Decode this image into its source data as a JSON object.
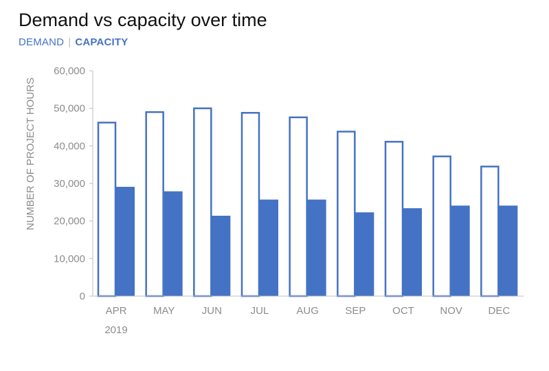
{
  "chart_data": {
    "type": "bar",
    "title": "Demand vs capacity over time",
    "ylabel": "NUMBER OF PROJECT HOURS",
    "xlabel": "",
    "year_label": "2019",
    "categories": [
      "APR",
      "MAY",
      "JUN",
      "JUL",
      "AUG",
      "SEP",
      "OCT",
      "NOV",
      "DEC"
    ],
    "series": [
      {
        "name": "DEMAND",
        "style": "outline",
        "color": "#4472c4",
        "values": [
          46200,
          49000,
          50000,
          48800,
          47600,
          43800,
          41100,
          37200,
          34500
        ]
      },
      {
        "name": "CAPACITY",
        "style": "filled",
        "color": "#4472c4",
        "values": [
          29100,
          27900,
          21400,
          25700,
          25700,
          22300,
          23400,
          24100,
          24100
        ]
      }
    ],
    "ylim": [
      0,
      60000
    ],
    "yticks": [
      0,
      10000,
      20000,
      30000,
      40000,
      50000,
      60000
    ],
    "ytick_labels": [
      "0",
      "10,000",
      "20,000",
      "30,000",
      "40,000",
      "50,000",
      "60,000"
    ],
    "legend": {
      "placement": "top-left",
      "separator": "|"
    },
    "grid": false
  }
}
